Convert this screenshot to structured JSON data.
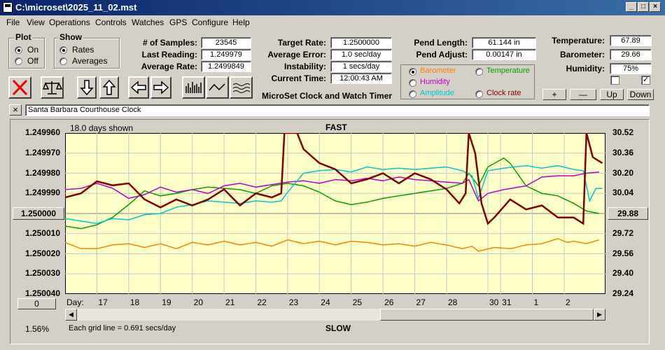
{
  "window": {
    "title": "C:\\microset\\2025_11_02.mst"
  },
  "menu": [
    "File",
    "View",
    "Operations",
    "Controls",
    "Watches",
    "GPS",
    "Configure",
    "Help"
  ],
  "plot_group": {
    "title": "Plot",
    "on": "On",
    "off": "Off",
    "selected": "On"
  },
  "show_group": {
    "title": "Show",
    "rates": "Rates",
    "averages": "Averages",
    "selected": "Rates"
  },
  "stats": {
    "samples_label": "# of Samples:",
    "samples": "23545",
    "last_label": "Last Reading:",
    "last": "1.249979",
    "avg_rate_label": "Average Rate:",
    "avg_rate": "1.2499849",
    "target_label": "Target Rate:",
    "target": "1.2500000",
    "avg_err_label": "Average Error:",
    "avg_err": "1.0 sec/day",
    "instab_label": "Instability:",
    "instab": "1 secs/day",
    "time_label": "Current Time:",
    "time": "12:00:43 AM",
    "pend_len_label": "Pend Length:",
    "pend_len": "61.144 in",
    "pend_adj_label": "Pend Adjust:",
    "pend_adj": "0.00147 in",
    "temp_label": "Temperature:",
    "temp": "67.89",
    "baro_label": "Barometer:",
    "baro": "29.66",
    "hum_label": "Humidity:",
    "hum": "75%"
  },
  "subtitle": "MicroSet Clock and Watch Timer",
  "aux": {
    "barometer": "Barometer",
    "temperature": "Temperature",
    "humidity": "Humidity",
    "amplitude": "Amplitude",
    "clock_rate": "Clock rate",
    "selected": "Barometer",
    "colors": {
      "barometer": "#ff8000",
      "temperature": "#00a000",
      "humidity": "#c000c0",
      "amplitude": "#00c8c8",
      "clock_rate": "#800000"
    }
  },
  "aux_buttons": {
    "plus": "+",
    "minus": "—",
    "up": "Up",
    "down": "Down"
  },
  "checkboxes": {
    "left": false,
    "right": true
  },
  "toolbar_icons": [
    "delete-icon",
    "scale-icon",
    "arrow-down-icon",
    "arrow-up-icon",
    "arrow-left-icon",
    "arrow-right-icon",
    "bar-chart-icon",
    "line-chart-icon",
    "wave-icon"
  ],
  "clock_name": "Santa Barbara Courthouse Clock",
  "close_x": "×",
  "chart_info": {
    "days_shown": "18.0 days shown",
    "fast": "FAST",
    "slow": "SLOW",
    "grid_note": "Each grid line = 0.691 secs/day",
    "percent": "1.56%",
    "day_label": "Day:",
    "center_button": "1.250000",
    "right_button": "29.88",
    "zero_button": "0"
  },
  "chart_data": {
    "type": "line",
    "y_left_ticks": [
      "1.249960",
      "1.249970",
      "1.249980",
      "1.249990",
      "1.250000",
      "1.250010",
      "1.250020",
      "1.250030",
      "1.250040"
    ],
    "y_left_range": [
      1.24996,
      1.25004
    ],
    "y_right_ticks": [
      "30.52",
      "30.36",
      "30.20",
      "30.04",
      "29.88",
      "29.72",
      "29.56",
      "29.40",
      "29.24"
    ],
    "y_right_range": [
      30.52,
      29.24
    ],
    "x_ticks": [
      "17",
      "18",
      "19",
      "20",
      "21",
      "22",
      "23",
      "24",
      "25",
      "26",
      "27",
      "28",
      "30",
      "31",
      "1",
      "2"
    ],
    "x_tick_days": [
      17,
      18,
      19,
      20,
      21,
      22,
      23,
      24,
      25,
      26,
      27,
      28,
      29.3,
      29.7,
      30.7,
      31.7
    ],
    "x_range": [
      16.0,
      33.0
    ],
    "series": [
      {
        "name": "Barometer",
        "color": "#ff8000",
        "points": [
          [
            16.0,
            29.65
          ],
          [
            16.5,
            29.6
          ],
          [
            17,
            29.6
          ],
          [
            17.5,
            29.63
          ],
          [
            18,
            29.64
          ],
          [
            18.5,
            29.61
          ],
          [
            19,
            29.64
          ],
          [
            19.5,
            29.6
          ],
          [
            20,
            29.65
          ],
          [
            20.5,
            29.63
          ],
          [
            21,
            29.66
          ],
          [
            21.5,
            29.63
          ],
          [
            22,
            29.65
          ],
          [
            22.5,
            29.62
          ],
          [
            23,
            29.67
          ],
          [
            23.5,
            29.64
          ],
          [
            24,
            29.66
          ],
          [
            24.5,
            29.63
          ],
          [
            25,
            29.66
          ],
          [
            25.5,
            29.65
          ],
          [
            26,
            29.63
          ],
          [
            26.5,
            29.64
          ],
          [
            27,
            29.62
          ],
          [
            27.5,
            29.65
          ],
          [
            28,
            29.63
          ],
          [
            28.5,
            29.6
          ],
          [
            28.8,
            29.62
          ],
          [
            29,
            29.58
          ],
          [
            29.5,
            29.61
          ],
          [
            30,
            29.6
          ],
          [
            30.5,
            29.63
          ],
          [
            31,
            29.64
          ],
          [
            31.5,
            29.68
          ],
          [
            31.8,
            29.65
          ],
          [
            32,
            29.66
          ],
          [
            32.4,
            29.64
          ],
          [
            32.8,
            29.67
          ]
        ]
      },
      {
        "name": "Temperature",
        "color": "#00a000",
        "points": [
          [
            16.0,
            29.78
          ],
          [
            16.5,
            29.76
          ],
          [
            17,
            29.79
          ],
          [
            17.5,
            29.85
          ],
          [
            18,
            29.95
          ],
          [
            18.5,
            30.06
          ],
          [
            19,
            30.02
          ],
          [
            19.5,
            30.04
          ],
          [
            20,
            30.07
          ],
          [
            20.5,
            30.09
          ],
          [
            21,
            30.08
          ],
          [
            21.5,
            30.07
          ],
          [
            22,
            30.04
          ],
          [
            22.5,
            30.1
          ],
          [
            23,
            30.12
          ],
          [
            23.5,
            30.1
          ],
          [
            24,
            30.05
          ],
          [
            24.5,
            29.98
          ],
          [
            25,
            29.95
          ],
          [
            25.5,
            29.97
          ],
          [
            26,
            30.0
          ],
          [
            26.5,
            30.02
          ],
          [
            27,
            30.04
          ],
          [
            27.5,
            30.06
          ],
          [
            28,
            30.08
          ],
          [
            28.5,
            30.12
          ],
          [
            28.7,
            30.2
          ],
          [
            29,
            30.1
          ],
          [
            29.3,
            30.25
          ],
          [
            29.8,
            30.32
          ],
          [
            30,
            30.28
          ],
          [
            30.5,
            30.1
          ],
          [
            31,
            30.04
          ],
          [
            31.5,
            30.02
          ],
          [
            32,
            29.96
          ],
          [
            32.4,
            29.9
          ],
          [
            32.8,
            29.88
          ]
        ]
      },
      {
        "name": "Humidity",
        "color": "#c000c0",
        "points": [
          [
            16.0,
            30.07
          ],
          [
            16.5,
            30.08
          ],
          [
            17,
            30.12
          ],
          [
            17.5,
            30.08
          ],
          [
            18,
            30.0
          ],
          [
            18.5,
            30.03
          ],
          [
            19,
            30.09
          ],
          [
            19.5,
            30.05
          ],
          [
            20,
            30.07
          ],
          [
            20.5,
            30.04
          ],
          [
            21,
            30.1
          ],
          [
            21.5,
            30.12
          ],
          [
            22,
            30.09
          ],
          [
            22.5,
            30.11
          ],
          [
            23,
            30.13
          ],
          [
            23.5,
            30.14
          ],
          [
            24,
            30.12
          ],
          [
            24.5,
            30.15
          ],
          [
            25,
            30.14
          ],
          [
            25.5,
            30.16
          ],
          [
            26,
            30.14
          ],
          [
            26.5,
            30.17
          ],
          [
            27,
            30.15
          ],
          [
            27.5,
            30.14
          ],
          [
            28,
            30.13
          ],
          [
            28.5,
            30.12
          ],
          [
            28.7,
            30.15
          ],
          [
            29,
            29.98
          ],
          [
            29.3,
            30.04
          ],
          [
            29.8,
            30.07
          ],
          [
            30.5,
            30.1
          ],
          [
            31,
            30.17
          ],
          [
            31.5,
            30.18
          ],
          [
            32,
            30.18
          ],
          [
            32.4,
            30.2
          ],
          [
            32.8,
            30.21
          ]
        ]
      },
      {
        "name": "Amplitude",
        "color": "#00c8c8",
        "points": [
          [
            16.0,
            29.84
          ],
          [
            16.5,
            29.82
          ],
          [
            17,
            29.8
          ],
          [
            17.5,
            29.84
          ],
          [
            18,
            29.83
          ],
          [
            18.5,
            29.87
          ],
          [
            19,
            29.88
          ],
          [
            19.5,
            29.93
          ],
          [
            20,
            29.95
          ],
          [
            20.5,
            29.98
          ],
          [
            21,
            29.97
          ],
          [
            21.5,
            29.96
          ],
          [
            22,
            29.98
          ],
          [
            22.5,
            29.97
          ],
          [
            22.8,
            29.98
          ],
          [
            23,
            30.05
          ],
          [
            23.5,
            30.2
          ],
          [
            24,
            30.22
          ],
          [
            24.5,
            30.23
          ],
          [
            25,
            30.21
          ],
          [
            25.5,
            30.25
          ],
          [
            26,
            30.23
          ],
          [
            26.5,
            30.24
          ],
          [
            27,
            30.23
          ],
          [
            27.5,
            30.24
          ],
          [
            28,
            30.25
          ],
          [
            28.5,
            30.22
          ],
          [
            28.8,
            30.18
          ],
          [
            29,
            30.0
          ],
          [
            29.3,
            30.22
          ],
          [
            29.8,
            30.24
          ],
          [
            30.5,
            30.26
          ],
          [
            31,
            30.24
          ],
          [
            31.5,
            30.26
          ],
          [
            32,
            30.23
          ],
          [
            32.3,
            30.22
          ],
          [
            32.5,
            29.98
          ],
          [
            32.7,
            30.08
          ],
          [
            32.9,
            30.08
          ]
        ]
      }
    ],
    "rate_series": {
      "name": "Clock rate",
      "color": "#800000",
      "points": [
        [
          16.0,
          1.249992
        ],
        [
          16.5,
          1.24999
        ],
        [
          17,
          1.249984
        ],
        [
          17.5,
          1.249986
        ],
        [
          18,
          1.249985
        ],
        [
          18.5,
          1.249993
        ],
        [
          19,
          1.249997
        ],
        [
          19.5,
          1.249993
        ],
        [
          20,
          1.249996
        ],
        [
          20.5,
          1.249993
        ],
        [
          21,
          1.249988
        ],
        [
          21.5,
          1.249996
        ],
        [
          22,
          1.24999
        ],
        [
          22.5,
          1.249992
        ],
        [
          22.8,
          1.24999
        ],
        [
          22.9,
          1.24996
        ],
        [
          23.3,
          1.24996
        ],
        [
          23.5,
          1.249968
        ],
        [
          24,
          1.249975
        ],
        [
          24.5,
          1.249978
        ],
        [
          25,
          1.249985
        ],
        [
          25.5,
          1.249983
        ],
        [
          26,
          1.24998
        ],
        [
          26.5,
          1.249985
        ],
        [
          27,
          1.24998
        ],
        [
          27.5,
          1.249983
        ],
        [
          28,
          1.249988
        ],
        [
          28.4,
          1.249995
        ],
        [
          28.6,
          1.24999
        ],
        [
          28.7,
          1.24996
        ],
        [
          28.9,
          1.24997
        ],
        [
          29.1,
          1.249995
        ],
        [
          29.3,
          1.250005
        ],
        [
          29.5,
          1.250002
        ],
        [
          30,
          1.249993
        ],
        [
          30.5,
          1.249998
        ],
        [
          31,
          1.249996
        ],
        [
          31.5,
          1.250002
        ],
        [
          32,
          1.250002
        ],
        [
          32.3,
          1.250005
        ],
        [
          32.4,
          1.24996
        ],
        [
          32.6,
          1.249972
        ],
        [
          32.9,
          1.249975
        ]
      ]
    }
  }
}
